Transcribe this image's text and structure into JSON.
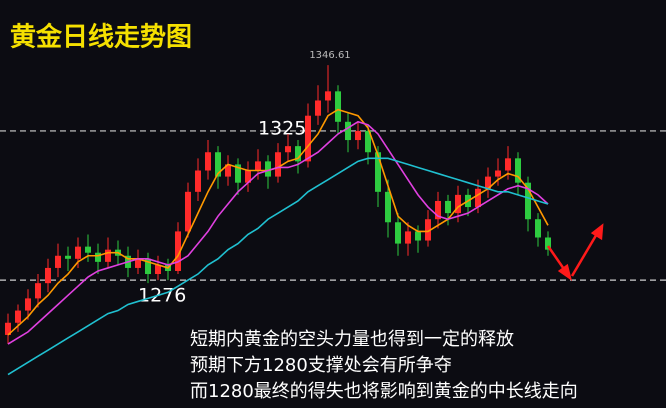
{
  "chart_data": {
    "type": "candlestick",
    "title": "黄金日线走势图",
    "ylim": [
      1234,
      1368
    ],
    "up_color": "#ff2a2a",
    "down_color": "#2ecc40",
    "ohlc": [
      [
        1258,
        1265,
        1255,
        1262
      ],
      [
        1262,
        1268,
        1259,
        1266
      ],
      [
        1266,
        1273,
        1263,
        1270
      ],
      [
        1270,
        1278,
        1267,
        1275
      ],
      [
        1275,
        1283,
        1272,
        1280
      ],
      [
        1280,
        1288,
        1277,
        1284
      ],
      [
        1284,
        1287,
        1279,
        1283
      ],
      [
        1283,
        1290,
        1280,
        1287
      ],
      [
        1287,
        1291,
        1282,
        1285
      ],
      [
        1285,
        1288,
        1278,
        1282
      ],
      [
        1282,
        1290,
        1280,
        1286
      ],
      [
        1286,
        1289,
        1281,
        1284
      ],
      [
        1284,
        1287,
        1277,
        1280
      ],
      [
        1280,
        1286,
        1278,
        1283
      ],
      [
        1283,
        1285,
        1275,
        1278
      ],
      [
        1278,
        1284,
        1276,
        1281
      ],
      [
        1281,
        1283,
        1276,
        1279
      ],
      [
        1279,
        1295,
        1278,
        1292
      ],
      [
        1292,
        1308,
        1290,
        1305
      ],
      [
        1305,
        1316,
        1302,
        1312
      ],
      [
        1312,
        1322,
        1309,
        1318
      ],
      [
        1318,
        1320,
        1306,
        1310
      ],
      [
        1310,
        1317,
        1307,
        1314
      ],
      [
        1314,
        1316,
        1304,
        1308
      ],
      [
        1308,
        1315,
        1305,
        1312
      ],
      [
        1312,
        1319,
        1309,
        1315
      ],
      [
        1315,
        1317,
        1306,
        1310
      ],
      [
        1310,
        1321,
        1308,
        1318
      ],
      [
        1318,
        1324,
        1315,
        1320
      ],
      [
        1320,
        1322,
        1311,
        1315
      ],
      [
        1315,
        1334,
        1313,
        1330
      ],
      [
        1330,
        1340,
        1327,
        1335
      ],
      [
        1335,
        1346.61,
        1331,
        1338
      ],
      [
        1338,
        1340,
        1324,
        1328
      ],
      [
        1328,
        1331,
        1318,
        1322
      ],
      [
        1322,
        1328,
        1319,
        1325
      ],
      [
        1325,
        1327,
        1314,
        1318
      ],
      [
        1318,
        1320,
        1300,
        1305
      ],
      [
        1305,
        1309,
        1290,
        1295
      ],
      [
        1295,
        1298,
        1284,
        1288
      ],
      [
        1288,
        1295,
        1284,
        1292
      ],
      [
        1292,
        1294,
        1285,
        1289
      ],
      [
        1289,
        1299,
        1287,
        1296
      ],
      [
        1296,
        1305,
        1293,
        1302
      ],
      [
        1302,
        1304,
        1294,
        1298
      ],
      [
        1298,
        1307,
        1295,
        1304
      ],
      [
        1304,
        1306,
        1297,
        1300
      ],
      [
        1300,
        1309,
        1298,
        1306
      ],
      [
        1306,
        1313,
        1303,
        1310
      ],
      [
        1310,
        1316,
        1307,
        1312
      ],
      [
        1312,
        1320,
        1309,
        1316
      ],
      [
        1316,
        1318,
        1304,
        1308
      ],
      [
        1308,
        1310,
        1292,
        1296
      ],
      [
        1296,
        1298,
        1287,
        1290
      ],
      [
        1290,
        1292,
        1284,
        1286
      ]
    ],
    "series": [
      {
        "color": "#ff9900",
        "values": [
          1258,
          1261,
          1264,
          1268,
          1271,
          1275,
          1278,
          1282,
          1284,
          1284,
          1285,
          1285,
          1283,
          1283,
          1282,
          1281,
          1280,
          1284,
          1291,
          1298,
          1305,
          1311,
          1314,
          1313,
          1312,
          1312,
          1312,
          1313,
          1315,
          1316,
          1320,
          1324,
          1330,
          1332,
          1331,
          1330,
          1326,
          1317,
          1307,
          1297,
          1294,
          1292,
          1292,
          1294,
          1296,
          1300,
          1302,
          1304,
          1306,
          1309,
          1311,
          1310,
          1306,
          1300,
          1294
        ]
      },
      {
        "color": "#e040e0",
        "values": [
          1255,
          1257,
          1259,
          1262,
          1265,
          1268,
          1271,
          1274,
          1277,
          1279,
          1280,
          1281,
          1282,
          1283,
          1283,
          1282,
          1281,
          1282,
          1284,
          1288,
          1292,
          1297,
          1301,
          1305,
          1308,
          1311,
          1312,
          1313,
          1313,
          1314,
          1316,
          1318,
          1321,
          1324,
          1326,
          1328,
          1327,
          1324,
          1319,
          1314,
          1309,
          1304,
          1300,
          1297,
          1296,
          1297,
          1298,
          1300,
          1302,
          1304,
          1306,
          1307,
          1306,
          1304,
          1301
        ]
      },
      {
        "color": "#20c0d0",
        "values": [
          1245,
          1247,
          1249,
          1251,
          1253,
          1255,
          1257,
          1259,
          1261,
          1263,
          1265,
          1266,
          1268,
          1269,
          1270,
          1271,
          1272,
          1274,
          1276,
          1278,
          1281,
          1283,
          1286,
          1288,
          1291,
          1293,
          1296,
          1298,
          1300,
          1302,
          1305,
          1307,
          1309,
          1311,
          1313,
          1315,
          1316,
          1316,
          1316,
          1315,
          1314,
          1313,
          1312,
          1311,
          1310,
          1309,
          1308,
          1307,
          1306,
          1305,
          1305,
          1304,
          1303,
          1302,
          1301
        ]
      }
    ],
    "levels": [
      1325,
      1276
    ],
    "peak": 1346.61,
    "notes": [
      "短期内黄金的空头力量也得到一定的释放",
      "预期下方1280支撑处会有所争夺",
      "而1280最终的得失也将影响到黄金的中长线走向"
    ]
  }
}
